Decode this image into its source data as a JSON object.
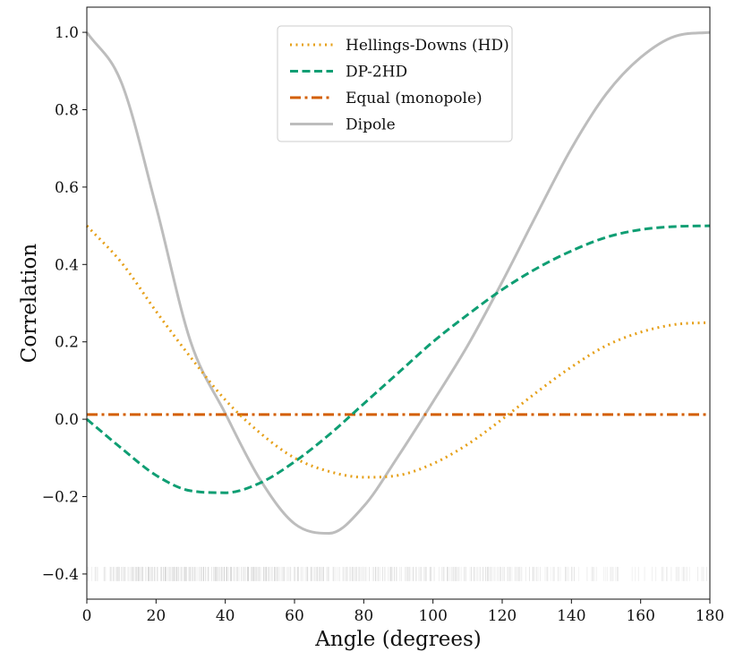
{
  "chart_data": {
    "type": "line",
    "title": "",
    "xlabel": "Angle (degrees)",
    "ylabel": "Correlation",
    "xlim": [
      0,
      180
    ],
    "ylim": [
      -0.465,
      1.065
    ],
    "xticks": [
      0,
      20,
      40,
      60,
      80,
      100,
      120,
      140,
      160,
      180
    ],
    "xtick_labels": [
      "0",
      "20",
      "40",
      "60",
      "80",
      "100",
      "120",
      "140",
      "160",
      "180"
    ],
    "yticks": [
      -0.4,
      -0.2,
      0.0,
      0.2,
      0.4,
      0.6,
      0.8,
      1.0
    ],
    "ytick_labels": [
      "−0.4",
      "−0.2",
      "0.0",
      "0.2",
      "0.4",
      "0.6",
      "0.8",
      "1.0"
    ],
    "grid": false,
    "legend": {
      "placement": "top-center"
    },
    "x": [
      0,
      10,
      20,
      30,
      40,
      50,
      60,
      70,
      80,
      90,
      100,
      110,
      120,
      130,
      140,
      150,
      160,
      170,
      180
    ],
    "series": [
      {
        "name": "Hellings-Downs (HD)",
        "color": "#e6a019",
        "style": "dotted",
        "values": [
          0.5,
          0.405,
          0.279,
          0.16,
          0.05,
          -0.035,
          -0.1,
          -0.135,
          -0.15,
          -0.145,
          -0.115,
          -0.065,
          0.0,
          0.07,
          0.135,
          0.19,
          0.225,
          0.245,
          0.25
        ]
      },
      {
        "name": "DP-2HD",
        "color": "#0f9e73",
        "style": "dashed",
        "values": [
          0.0,
          -0.075,
          -0.145,
          -0.185,
          -0.19,
          -0.165,
          -0.11,
          -0.04,
          0.04,
          0.12,
          0.2,
          0.27,
          0.335,
          0.39,
          0.435,
          0.47,
          0.49,
          0.498,
          0.5
        ]
      },
      {
        "name": "Equal (monopole)",
        "color": "#d35f00",
        "style": "dashdot",
        "values": [
          0.012,
          0.012,
          0.012,
          0.012,
          0.012,
          0.012,
          0.012,
          0.012,
          0.012,
          0.012,
          0.012,
          0.012,
          0.012,
          0.012,
          0.012,
          0.012,
          0.012,
          0.012,
          0.012
        ]
      },
      {
        "name": "Dipole",
        "color": "#bdbdbd",
        "style": "solid",
        "values": [
          1.0,
          0.87,
          0.55,
          0.2,
          0.015,
          -0.155,
          -0.27,
          -0.295,
          -0.225,
          -0.095,
          0.045,
          0.19,
          0.355,
          0.53,
          0.7,
          0.84,
          0.935,
          0.99,
          1.0
        ]
      }
    ],
    "rug": {
      "y_range": [
        -0.4185,
        -0.3815
      ],
      "color": "#000000",
      "density_x": [
        0,
        20,
        40,
        60,
        80,
        100,
        120,
        140,
        160,
        180
      ],
      "density": [
        0.55,
        0.95,
        0.95,
        0.85,
        0.75,
        0.7,
        0.55,
        0.4,
        0.3,
        0.25
      ]
    }
  }
}
